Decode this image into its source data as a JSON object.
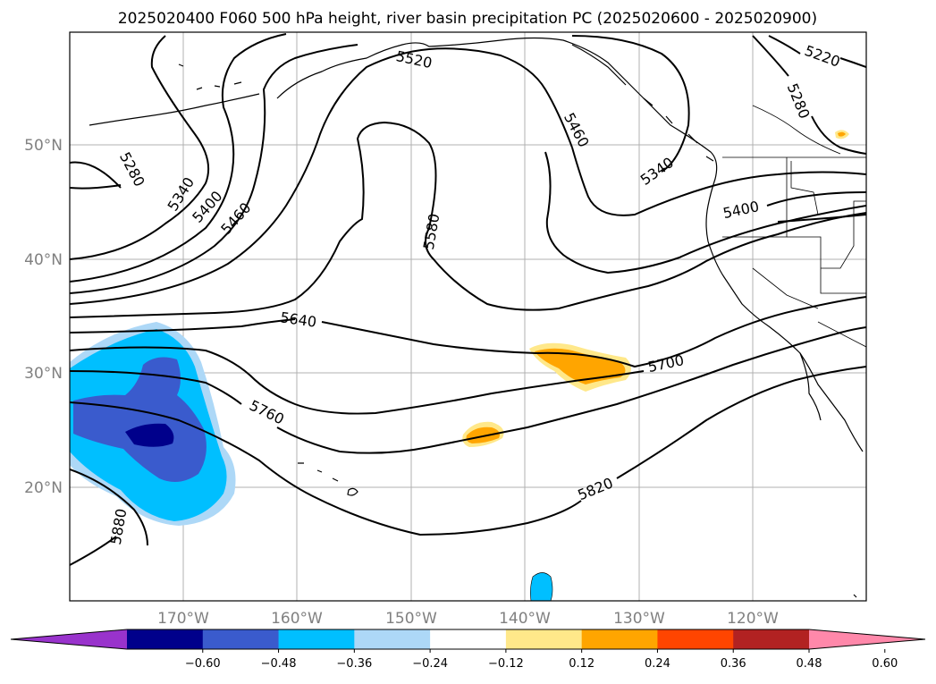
{
  "title": "2025020400 F060 500 hPa height, river basin precipitation PC (2025020600 - 2025020900)",
  "lon_ticks": [
    "170°W",
    "160°W",
    "150°W",
    "140°W",
    "130°W",
    "120°W"
  ],
  "lat_ticks": [
    "50°N",
    "40°N",
    "30°N",
    "20°N"
  ],
  "contour_labels": [
    "5220",
    "5280",
    "5280",
    "5340",
    "5340",
    "5400",
    "5400",
    "5460",
    "5460",
    "5520",
    "5580",
    "5640",
    "5700",
    "5760",
    "5820",
    "5880"
  ],
  "colorbar": {
    "ticks": [
      "−0.60",
      "−0.48",
      "−0.36",
      "−0.24",
      "−0.12",
      "0.12",
      "0.24",
      "0.36",
      "0.48",
      "0.60"
    ],
    "colors": [
      "#9933cc",
      "#00008b",
      "#3a5bcd",
      "#00bfff",
      "#add8f7",
      "#ffffff",
      "#ffe88a",
      "#ffa500",
      "#ff4500",
      "#b22222",
      "#ff88aa"
    ]
  }
}
